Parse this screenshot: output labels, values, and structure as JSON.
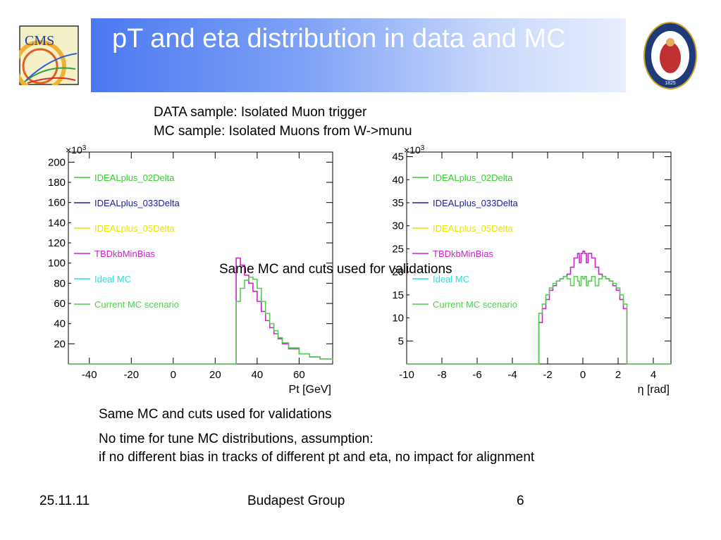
{
  "slide": {
    "title": "pT and eta distribution in data and MC",
    "samples": [
      "DATA sample: Isolated Muon trigger",
      "MC sample: Isolated Muons from W->munu"
    ],
    "overlay_note": "Same MC and cuts used for validations",
    "notes": [
      "Same MC and cuts used for validations",
      "No time for tune MC distributions, assumption:",
      "if no different bias in tracks of different pt and eta, no impact for alignment"
    ],
    "logos": {
      "left_text": "CMS",
      "left_icon": "cms-logo-icon",
      "right_icon": "academy-seal-icon",
      "right_year": "1825"
    }
  },
  "footer": {
    "date": "25.11.11",
    "group": "Budapest Group",
    "page": "6"
  },
  "colors": {
    "IDEALplus_02Delta": "#33cc33",
    "IDEALplus_033Delta": "#1a1aa0",
    "IDEALplus_05Delta": "#e6e600",
    "TBDkbMinBias": "#cc22cc",
    "Ideal MC": "#22dddd",
    "Current MC scenario": "#55cc55"
  },
  "chart_data": [
    {
      "type": "line",
      "chart": "pt",
      "xlabel": "Pt [GeV]",
      "ylabel_multiplier": "×10",
      "ylabel_multiplier_exp": "3",
      "xlim": [
        -50,
        76
      ],
      "ylim": [
        0,
        210
      ],
      "x_ticks": [
        -40,
        -20,
        0,
        20,
        40,
        60
      ],
      "y_ticks": [
        20,
        40,
        60,
        80,
        100,
        120,
        140,
        160,
        180,
        200
      ],
      "legend": [
        "IDEALplus_02Delta",
        "IDEALplus_033Delta",
        "IDEALplus_05Delta",
        "TBDkbMinBias",
        "Ideal MC",
        "Current MC scenario"
      ],
      "legend_position": "left",
      "series": [
        {
          "name": "TBDkbMinBias",
          "x": [
            -50,
            30,
            30,
            32,
            34,
            36,
            38,
            40,
            42,
            44,
            46,
            48,
            50,
            52,
            55,
            60,
            65,
            70,
            76
          ],
          "y": [
            0,
            0,
            105,
            98,
            88,
            80,
            72,
            62,
            52,
            43,
            36,
            30,
            25,
            20,
            15,
            10,
            7,
            5,
            3
          ]
        },
        {
          "name": "Current MC scenario",
          "x": [
            -50,
            30,
            30,
            32,
            34,
            36,
            38,
            40,
            42,
            44,
            46,
            48,
            50,
            52,
            55,
            60,
            65,
            70,
            76
          ],
          "y": [
            0,
            0,
            62,
            75,
            83,
            86,
            84,
            75,
            62,
            50,
            40,
            33,
            26,
            21,
            16,
            10,
            7,
            5,
            3
          ]
        }
      ]
    },
    {
      "type": "line",
      "chart": "eta",
      "xlabel": "η [rad]",
      "ylabel_multiplier": "×10",
      "ylabel_multiplier_exp": "3",
      "xlim": [
        -10,
        5
      ],
      "ylim": [
        0,
        46
      ],
      "x_ticks": [
        -10,
        -8,
        -6,
        -4,
        -2,
        0,
        2,
        4
      ],
      "y_ticks": [
        5,
        10,
        15,
        20,
        25,
        30,
        35,
        40,
        45
      ],
      "legend": [
        "IDEALplus_02Delta",
        "IDEALplus_033Delta",
        "IDEALplus_05Delta",
        "TBDkbMinBias",
        "Ideal MC",
        "Current MC scenario"
      ],
      "legend_position": "left",
      "series": [
        {
          "name": "TBDkbMinBias",
          "x": [
            -10,
            -2.5,
            -2.5,
            -2.3,
            -2.1,
            -1.9,
            -1.7,
            -1.5,
            -1.3,
            -1.1,
            -0.9,
            -0.7,
            -0.5,
            -0.3,
            -0.2,
            -0.1,
            0,
            0.1,
            0.2,
            0.3,
            0.5,
            0.7,
            0.9,
            1.1,
            1.3,
            1.5,
            1.7,
            1.9,
            2.1,
            2.3,
            2.5,
            2.5,
            5
          ],
          "y": [
            0,
            0,
            9,
            12,
            14,
            16,
            17,
            18,
            18.5,
            19,
            19.5,
            21,
            23,
            24,
            22,
            24,
            24.5,
            24,
            22,
            24,
            23,
            21,
            19.5,
            19,
            18.5,
            18,
            17,
            16,
            14,
            12,
            9,
            0,
            0
          ]
        },
        {
          "name": "Current MC scenario",
          "x": [
            -10,
            -2.5,
            -2.5,
            -2.3,
            -2.1,
            -1.9,
            -1.7,
            -1.5,
            -1.3,
            -1.1,
            -0.9,
            -0.7,
            -0.5,
            -0.3,
            -0.2,
            -0.1,
            0,
            0.1,
            0.2,
            0.3,
            0.5,
            0.7,
            0.9,
            1.1,
            1.3,
            1.5,
            1.7,
            1.9,
            2.1,
            2.3,
            2.5,
            2.5,
            5
          ],
          "y": [
            0,
            0,
            11,
            13,
            15,
            16.5,
            17.5,
            18,
            18.5,
            19,
            18.5,
            17,
            19,
            18,
            17,
            19,
            18.5,
            19,
            17,
            18,
            19,
            17,
            18.5,
            19,
            18.5,
            18,
            17.5,
            16.5,
            15,
            13,
            11,
            0,
            0
          ]
        }
      ]
    }
  ]
}
